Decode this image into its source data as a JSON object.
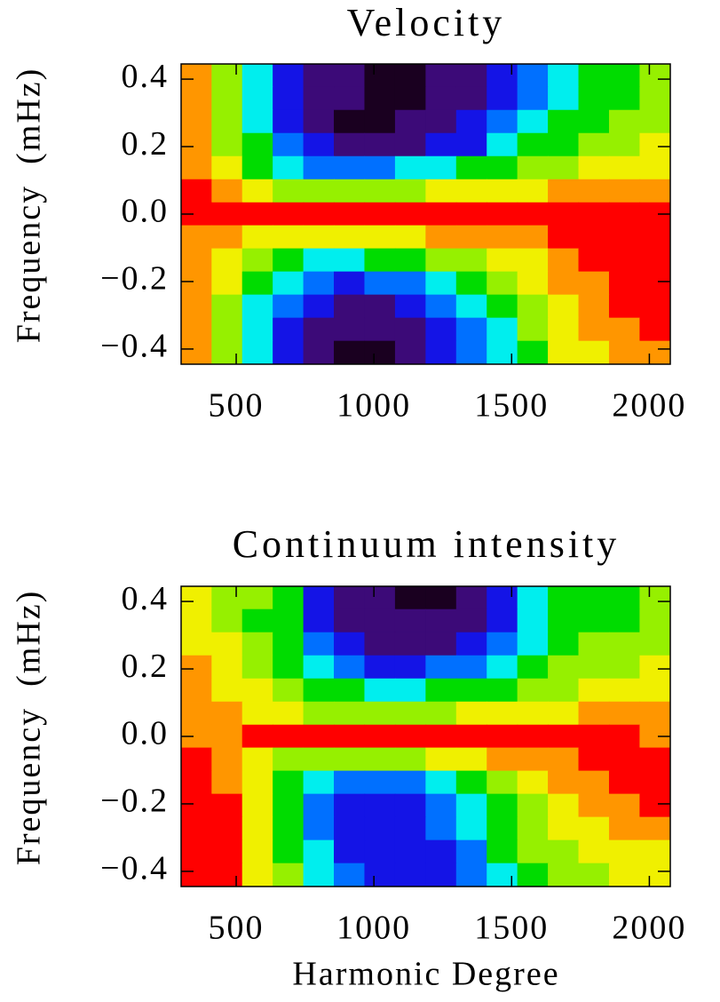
{
  "chart_data": [
    {
      "type": "heatmap",
      "title": "Velocity",
      "y_label": "Frequency  (mHz)",
      "xlim": [
        300,
        2076
      ],
      "ylim": [
        -0.445,
        0.445
      ],
      "xticks": [
        500,
        1000,
        1500,
        2000
      ],
      "yticks": [
        {
          "value": -0.4,
          "label": "−0.4"
        },
        {
          "value": -0.2,
          "label": "−0.2"
        },
        {
          "value": 0,
          "label": "0.0"
        },
        0.2,
        0.4
      ],
      "colorscale": [
        "#1a0020",
        "#3c0a78",
        "#1414e6",
        "#0070ff",
        "#00eeee",
        "#00dc00",
        "#96f000",
        "#f0f000",
        "#ff9600",
        "#ff0000"
      ],
      "x": [
        356,
        467,
        578,
        689,
        800,
        911,
        1022,
        1133,
        1244,
        1355,
        1466,
        1577,
        1688,
        1799,
        1910,
        2021
      ],
      "y": [
        0.411,
        0.342,
        0.274,
        0.205,
        0.137,
        0.068,
        0,
        -0.068,
        -0.137,
        -0.205,
        -0.274,
        -0.342,
        -0.411
      ],
      "z": [
        [
          8,
          6,
          4,
          2,
          1,
          1,
          0,
          0,
          1,
          1,
          2,
          3,
          4,
          5,
          5,
          6
        ],
        [
          8,
          6,
          4,
          2,
          1,
          1,
          0,
          0,
          1,
          1,
          2,
          3,
          4,
          5,
          5,
          6
        ],
        [
          8,
          6,
          4,
          2,
          1,
          0,
          0,
          1,
          1,
          2,
          3,
          4,
          5,
          5,
          6,
          6
        ],
        [
          8,
          6,
          5,
          3,
          2,
          1,
          1,
          1,
          2,
          2,
          4,
          5,
          5,
          6,
          6,
          7
        ],
        [
          8,
          7,
          5,
          4,
          3,
          3,
          3,
          4,
          4,
          5,
          5,
          6,
          6,
          7,
          7,
          7
        ],
        [
          9,
          8,
          7,
          6,
          6,
          6,
          6,
          6,
          7,
          7,
          7,
          7,
          8,
          8,
          8,
          8
        ],
        [
          9,
          9,
          9,
          9,
          9,
          9,
          9,
          9,
          9,
          9,
          9,
          9,
          9,
          9,
          9,
          9
        ],
        [
          8,
          8,
          7,
          7,
          7,
          7,
          7,
          7,
          8,
          8,
          8,
          8,
          9,
          9,
          9,
          9
        ],
        [
          8,
          7,
          6,
          5,
          4,
          4,
          5,
          5,
          6,
          6,
          7,
          7,
          8,
          9,
          9,
          9
        ],
        [
          8,
          7,
          5,
          4,
          3,
          2,
          3,
          3,
          4,
          5,
          6,
          7,
          8,
          8,
          9,
          9
        ],
        [
          8,
          6,
          4,
          3,
          2,
          1,
          1,
          2,
          3,
          4,
          5,
          6,
          7,
          8,
          9,
          9
        ],
        [
          8,
          6,
          4,
          2,
          1,
          1,
          1,
          1,
          2,
          3,
          4,
          6,
          7,
          8,
          8,
          9
        ],
        [
          8,
          6,
          4,
          2,
          1,
          0,
          0,
          1,
          2,
          3,
          4,
          5,
          7,
          7,
          8,
          8
        ]
      ]
    },
    {
      "type": "heatmap",
      "title": "Continuum intensity",
      "y_label": "Frequency  (mHz)",
      "x_label": "Harmonic Degree",
      "xlim": [
        300,
        2076
      ],
      "ylim": [
        -0.445,
        0.445
      ],
      "xticks": [
        500,
        1000,
        1500,
        2000
      ],
      "yticks": [
        {
          "value": -0.4,
          "label": "−0.4"
        },
        {
          "value": -0.2,
          "label": "−0.2"
        },
        {
          "value": 0,
          "label": "0.0"
        },
        0.2,
        0.4
      ],
      "colorscale": [
        "#1a0020",
        "#3c0a78",
        "#1414e6",
        "#0070ff",
        "#00eeee",
        "#00dc00",
        "#96f000",
        "#f0f000",
        "#ff9600",
        "#ff0000"
      ],
      "x": [
        356,
        467,
        578,
        689,
        800,
        911,
        1022,
        1133,
        1244,
        1355,
        1466,
        1577,
        1688,
        1799,
        1910,
        2021
      ],
      "y": [
        0.411,
        0.342,
        0.274,
        0.205,
        0.137,
        0.068,
        0,
        -0.068,
        -0.137,
        -0.205,
        -0.274,
        -0.342,
        -0.411
      ],
      "z": [
        [
          7,
          6,
          6,
          5,
          2,
          1,
          1,
          0,
          0,
          1,
          2,
          4,
          5,
          5,
          5,
          6
        ],
        [
          7,
          6,
          5,
          5,
          2,
          1,
          1,
          1,
          1,
          1,
          2,
          4,
          5,
          5,
          5,
          6
        ],
        [
          7,
          7,
          6,
          5,
          3,
          2,
          1,
          1,
          1,
          2,
          3,
          4,
          5,
          6,
          6,
          6
        ],
        [
          8,
          7,
          6,
          5,
          4,
          3,
          2,
          2,
          3,
          3,
          4,
          5,
          6,
          6,
          6,
          7
        ],
        [
          8,
          7,
          7,
          6,
          5,
          5,
          4,
          4,
          5,
          5,
          5,
          6,
          6,
          7,
          7,
          7
        ],
        [
          8,
          8,
          7,
          7,
          6,
          6,
          6,
          6,
          6,
          7,
          7,
          7,
          7,
          8,
          8,
          8
        ],
        [
          8,
          8,
          9,
          9,
          9,
          9,
          9,
          9,
          9,
          9,
          9,
          9,
          9,
          9,
          9,
          8
        ],
        [
          9,
          8,
          7,
          6,
          6,
          6,
          6,
          6,
          7,
          7,
          8,
          8,
          8,
          9,
          9,
          9
        ],
        [
          9,
          8,
          7,
          5,
          4,
          3,
          3,
          3,
          4,
          5,
          6,
          7,
          8,
          8,
          9,
          9
        ],
        [
          9,
          9,
          7,
          5,
          3,
          2,
          2,
          2,
          3,
          4,
          5,
          6,
          7,
          8,
          8,
          9
        ],
        [
          9,
          9,
          7,
          5,
          3,
          2,
          2,
          2,
          3,
          4,
          5,
          6,
          7,
          7,
          8,
          8
        ],
        [
          9,
          9,
          7,
          5,
          4,
          2,
          2,
          2,
          2,
          3,
          5,
          6,
          6,
          7,
          7,
          7
        ],
        [
          9,
          9,
          7,
          6,
          4,
          3,
          2,
          2,
          2,
          3,
          4,
          5,
          6,
          6,
          7,
          7
        ]
      ]
    }
  ]
}
